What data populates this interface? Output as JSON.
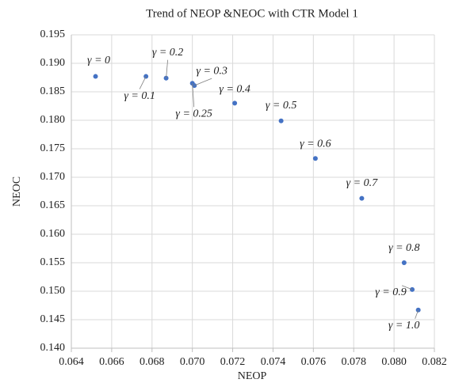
{
  "chart_data": {
    "type": "scatter",
    "title": "Trend of NEOP &NEOC with CTR Model 1",
    "x_label": "NEOP",
    "y_label": "NEOC",
    "color": "#4472c4",
    "grid": true,
    "x": [
      0.0652,
      0.0677,
      0.0687,
      0.0701,
      0.07,
      0.0721,
      0.0744,
      0.0761,
      0.0784,
      0.0805,
      0.0809,
      0.0812
    ],
    "values": [
      0.1877,
      0.1877,
      0.1874,
      0.1861,
      0.1865,
      0.183,
      0.1799,
      0.1733,
      0.1663,
      0.155,
      0.1503,
      0.1467
    ],
    "labels": [
      "γ = 0",
      "γ = 0.1",
      "γ = 0.2",
      "γ = 0.3",
      "γ = 0.25",
      "γ = 0.4",
      "γ = 0.5",
      "γ = 0.6",
      "γ = 0.7",
      "γ = 0.8",
      "γ = 0.9",
      "γ = 1.0"
    ],
    "xlim": [
      0.064,
      0.082
    ],
    "xticks": [
      0.064,
      0.066,
      0.068,
      {
        "value": 0.07,
        "label": "0.070"
      },
      0.072,
      0.074,
      0.076,
      0.078,
      {
        "value": 0.08,
        "label": "0.080"
      },
      0.082
    ],
    "ylim": [
      0.14,
      0.195
    ],
    "yticks": [
      {
        "value": 0.14,
        "label": "0.140"
      },
      0.145,
      {
        "value": 0.15,
        "label": "0.150"
      },
      0.155,
      {
        "value": 0.16,
        "label": "0.160"
      },
      0.165,
      {
        "value": 0.17,
        "label": "0.170"
      },
      0.175,
      {
        "value": 0.18,
        "label": "0.180"
      },
      0.185,
      {
        "value": 0.19,
        "label": "0.190"
      },
      0.195
    ]
  }
}
